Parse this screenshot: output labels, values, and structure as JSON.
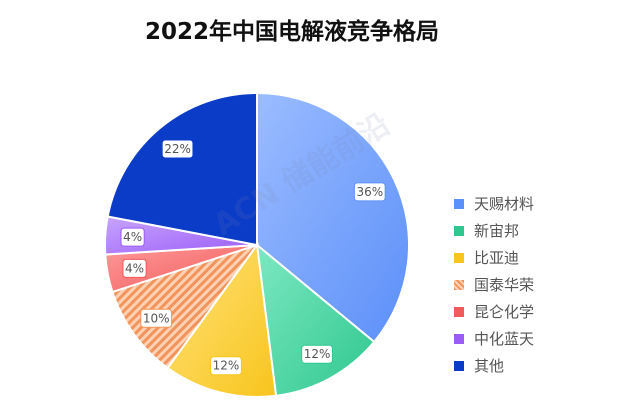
{
  "chart_data": {
    "type": "pie",
    "title": "2022年中国电解液竞争格局",
    "watermark": "ACN 储能前沿",
    "slices": [
      {
        "name": "天赐材料",
        "value": 36,
        "label": "36%",
        "color": "#5b8ff9",
        "color_light": "#9bbcff"
      },
      {
        "name": "新宙邦",
        "value": 12,
        "label": "12%",
        "color": "#2fc78f",
        "color_light": "#7de8c2"
      },
      {
        "name": "比亚迪",
        "value": 12,
        "label": "12%",
        "color": "#f8c51d",
        "color_light": "#ffe27a"
      },
      {
        "name": "国泰华荣",
        "value": 10,
        "label": "10%",
        "color": "#f2945c",
        "color_light": "#ffd2b5",
        "pattern": "hatched"
      },
      {
        "name": "昆仑化学",
        "value": 4,
        "label": "4%",
        "color": "#ef5a5a",
        "color_light": "#ff9a9a"
      },
      {
        "name": "中化蓝天",
        "value": 4,
        "label": "4%",
        "color": "#9b5cf6",
        "color_light": "#c7a4ff"
      },
      {
        "name": "其他",
        "value": 22,
        "label": "22%",
        "color": "#0b3cc8",
        "color_light": "#0b3cc8"
      }
    ],
    "legend_position": "right"
  }
}
